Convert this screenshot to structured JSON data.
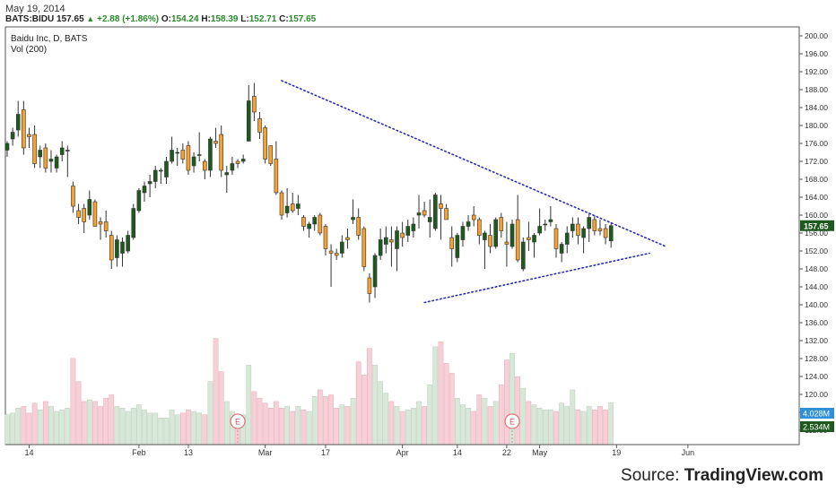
{
  "header": {
    "date": "May 19, 2014",
    "symbol": "BATS:BIDU",
    "last": "157.65",
    "change": "+2.88 (+1.86%)",
    "open_label": "O:",
    "open": "154.24",
    "high_label": "H:",
    "high": "158.39",
    "low_label": "L:",
    "low": "152.71",
    "close_label": "C:",
    "close": "157.65"
  },
  "chart_data": {
    "type": "candlestick",
    "title": "Baidu Inc, D, BATS",
    "volume_label": "Vol (200)",
    "ylim": [
      110,
      202
    ],
    "y_ticks": [
      "112.00",
      "116.00",
      "120.00",
      "124.00",
      "128.00",
      "132.00",
      "136.00",
      "140.00",
      "144.00",
      "148.00",
      "152.00",
      "156.00",
      "160.00",
      "164.00",
      "168.00",
      "172.00",
      "176.00",
      "180.00",
      "184.00",
      "188.00",
      "192.00",
      "196.00",
      "200.00"
    ],
    "x_ticks": [
      {
        "i": 4,
        "label": "14"
      },
      {
        "i": 24,
        "label": "Feb"
      },
      {
        "i": 33,
        "label": "13"
      },
      {
        "i": 47,
        "label": "Mar"
      },
      {
        "i": 58,
        "label": "17"
      },
      {
        "i": 72,
        "label": "Apr"
      },
      {
        "i": 82,
        "label": "14"
      },
      {
        "i": 91,
        "label": "22"
      },
      {
        "i": 97,
        "label": "May"
      },
      {
        "i": 111,
        "label": "19"
      },
      {
        "i": 124,
        "label": "Jun"
      }
    ],
    "price_badge": {
      "value": 157.65,
      "label": "157.65",
      "color": "#1e5a1e"
    },
    "volume_badges": [
      {
        "label": "4.028M",
        "color": "#2f8fd8"
      },
      {
        "label": "2.534M",
        "color": "#1e5a1e"
      }
    ],
    "colors": {
      "up": "#1e5a1e",
      "down": "#f5a030",
      "vol_up": "#d8e8d8",
      "vol_down": "#f6d0d6",
      "trend": "#2b2bb8"
    },
    "earnings_markers": [
      {
        "i": 42,
        "label": "E"
      },
      {
        "i": 92,
        "label": "E"
      }
    ],
    "trendlines": [
      {
        "points": [
          [
            50,
            190.0
          ],
          [
            120,
            153.0
          ]
        ]
      },
      {
        "points": [
          [
            76,
            140.5
          ],
          [
            117,
            151.5
          ]
        ]
      }
    ],
    "candles": [
      {
        "o": 174.5,
        "h": 176.5,
        "l": 173.0,
        "c": 176.0,
        "v": 1.8
      },
      {
        "o": 177.0,
        "h": 179.5,
        "l": 175.5,
        "c": 178.5,
        "v": 1.9
      },
      {
        "o": 179.0,
        "h": 185.5,
        "l": 177.5,
        "c": 182.5,
        "v": 2.2
      },
      {
        "o": 183.5,
        "h": 185.5,
        "l": 173.5,
        "c": 175.0,
        "v": 2.3
      },
      {
        "o": 178.0,
        "h": 179.5,
        "l": 175.0,
        "c": 177.5,
        "v": 1.9
      },
      {
        "o": 178.0,
        "h": 180.0,
        "l": 170.5,
        "c": 171.5,
        "v": 2.5
      },
      {
        "o": 173.0,
        "h": 175.5,
        "l": 170.5,
        "c": 174.5,
        "v": 2.1
      },
      {
        "o": 175.0,
        "h": 176.0,
        "l": 169.5,
        "c": 170.5,
        "v": 2.6
      },
      {
        "o": 172.0,
        "h": 174.5,
        "l": 169.5,
        "c": 172.5,
        "v": 2.3
      },
      {
        "o": 170.5,
        "h": 173.5,
        "l": 169.5,
        "c": 173.0,
        "v": 2.0
      },
      {
        "o": 173.5,
        "h": 176.5,
        "l": 172.0,
        "c": 175.0,
        "v": 2.1
      },
      {
        "o": 174.5,
        "h": 175.5,
        "l": 168.5,
        "c": 174.5,
        "v": 2.2
      },
      {
        "o": 166.5,
        "h": 167.5,
        "l": 160.5,
        "c": 162.0,
        "v": 5.2
      },
      {
        "o": 161.0,
        "h": 162.5,
        "l": 158.0,
        "c": 159.5,
        "v": 3.8
      },
      {
        "o": 161.5,
        "h": 162.5,
        "l": 156.0,
        "c": 158.5,
        "v": 2.6
      },
      {
        "o": 160.0,
        "h": 165.5,
        "l": 159.0,
        "c": 163.5,
        "v": 2.7
      },
      {
        "o": 163.0,
        "h": 163.5,
        "l": 157.5,
        "c": 157.5,
        "v": 2.6
      },
      {
        "o": 158.5,
        "h": 159.5,
        "l": 154.5,
        "c": 158.0,
        "v": 2.3
      },
      {
        "o": 158.5,
        "h": 161.0,
        "l": 155.0,
        "c": 156.5,
        "v": 2.8
      },
      {
        "o": 155.5,
        "h": 156.5,
        "l": 148.0,
        "c": 150.0,
        "v": 3.0
      },
      {
        "o": 150.5,
        "h": 155.5,
        "l": 148.5,
        "c": 154.5,
        "v": 2.3
      },
      {
        "o": 151.5,
        "h": 155.0,
        "l": 148.5,
        "c": 154.0,
        "v": 2.2
      },
      {
        "o": 152.0,
        "h": 156.5,
        "l": 151.5,
        "c": 155.5,
        "v": 2.0
      },
      {
        "o": 155.0,
        "h": 162.5,
        "l": 154.5,
        "c": 161.5,
        "v": 2.2
      },
      {
        "o": 161.0,
        "h": 166.0,
        "l": 160.5,
        "c": 165.5,
        "v": 2.4
      },
      {
        "o": 165.0,
        "h": 167.5,
        "l": 163.0,
        "c": 166.5,
        "v": 2.1
      },
      {
        "o": 167.0,
        "h": 169.0,
        "l": 164.0,
        "c": 167.5,
        "v": 1.9
      },
      {
        "o": 167.5,
        "h": 171.0,
        "l": 166.0,
        "c": 170.0,
        "v": 1.9
      },
      {
        "o": 170.0,
        "h": 170.5,
        "l": 167.0,
        "c": 170.0,
        "v": 1.6
      },
      {
        "o": 168.5,
        "h": 173.0,
        "l": 167.0,
        "c": 172.0,
        "v": 1.6
      },
      {
        "o": 172.0,
        "h": 177.5,
        "l": 171.5,
        "c": 174.5,
        "v": 2.1
      },
      {
        "o": 174.0,
        "h": 175.0,
        "l": 171.0,
        "c": 174.0,
        "v": 1.8
      },
      {
        "o": 174.5,
        "h": 176.0,
        "l": 171.5,
        "c": 172.5,
        "v": 1.9
      },
      {
        "o": 175.5,
        "h": 176.5,
        "l": 169.0,
        "c": 170.0,
        "v": 2.1
      },
      {
        "o": 171.0,
        "h": 174.0,
        "l": 169.5,
        "c": 173.0,
        "v": 2.0
      },
      {
        "o": 173.5,
        "h": 178.5,
        "l": 172.0,
        "c": 173.5,
        "v": 1.9
      },
      {
        "o": 172.0,
        "h": 172.5,
        "l": 168.0,
        "c": 170.0,
        "v": 1.8
      },
      {
        "o": 170.0,
        "h": 177.5,
        "l": 168.5,
        "c": 177.0,
        "v": 3.8
      },
      {
        "o": 176.5,
        "h": 179.5,
        "l": 175.0,
        "c": 176.0,
        "v": 6.4
      },
      {
        "o": 178.0,
        "h": 180.0,
        "l": 168.5,
        "c": 170.0,
        "v": 4.4
      },
      {
        "o": 169.0,
        "h": 171.0,
        "l": 165.0,
        "c": 169.5,
        "v": 2.6
      },
      {
        "o": 170.0,
        "h": 173.0,
        "l": 169.0,
        "c": 171.5,
        "v": 2.0
      },
      {
        "o": 172.0,
        "h": 172.5,
        "l": 170.5,
        "c": 171.5,
        "v": 1.6
      },
      {
        "o": 172.0,
        "h": 173.5,
        "l": 171.5,
        "c": 172.5,
        "v": 1.8
      },
      {
        "o": 176.5,
        "h": 189.0,
        "l": 176.5,
        "c": 185.5,
        "v": 4.8
      },
      {
        "o": 186.5,
        "h": 189.5,
        "l": 181.0,
        "c": 183.0,
        "v": 3.2
      },
      {
        "o": 181.5,
        "h": 183.0,
        "l": 177.0,
        "c": 178.5,
        "v": 2.8
      },
      {
        "o": 179.5,
        "h": 180.0,
        "l": 171.5,
        "c": 172.5,
        "v": 2.5
      },
      {
        "o": 175.5,
        "h": 175.5,
        "l": 171.0,
        "c": 171.5,
        "v": 2.2
      },
      {
        "o": 172.5,
        "h": 176.5,
        "l": 164.5,
        "c": 165.0,
        "v": 2.6
      },
      {
        "o": 165.0,
        "h": 165.5,
        "l": 159.0,
        "c": 160.0,
        "v": 2.2
      },
      {
        "o": 160.5,
        "h": 166.0,
        "l": 159.5,
        "c": 162.0,
        "v": 2.3
      },
      {
        "o": 162.5,
        "h": 165.0,
        "l": 160.5,
        "c": 161.0,
        "v": 2.0
      },
      {
        "o": 161.5,
        "h": 164.5,
        "l": 160.0,
        "c": 162.5,
        "v": 2.3
      },
      {
        "o": 159.5,
        "h": 160.0,
        "l": 156.5,
        "c": 157.5,
        "v": 2.1
      },
      {
        "o": 157.0,
        "h": 158.5,
        "l": 155.0,
        "c": 158.0,
        "v": 2.0
      },
      {
        "o": 158.0,
        "h": 160.0,
        "l": 156.5,
        "c": 159.5,
        "v": 2.9
      },
      {
        "o": 160.0,
        "h": 160.5,
        "l": 155.5,
        "c": 156.0,
        "v": 3.3
      },
      {
        "o": 157.5,
        "h": 158.0,
        "l": 151.0,
        "c": 152.5,
        "v": 2.9
      },
      {
        "o": 152.0,
        "h": 153.5,
        "l": 144.0,
        "c": 151.5,
        "v": 3.0
      },
      {
        "o": 151.5,
        "h": 152.5,
        "l": 150.0,
        "c": 151.0,
        "v": 2.2
      },
      {
        "o": 151.5,
        "h": 155.5,
        "l": 150.5,
        "c": 154.0,
        "v": 2.4
      },
      {
        "o": 155.0,
        "h": 157.0,
        "l": 152.5,
        "c": 154.5,
        "v": 2.3
      },
      {
        "o": 159.0,
        "h": 163.5,
        "l": 158.0,
        "c": 159.5,
        "v": 2.8
      },
      {
        "o": 159.5,
        "h": 161.5,
        "l": 154.5,
        "c": 155.5,
        "v": 5.0
      },
      {
        "o": 157.0,
        "h": 157.5,
        "l": 147.5,
        "c": 148.5,
        "v": 4.2
      },
      {
        "o": 146.0,
        "h": 147.0,
        "l": 140.5,
        "c": 142.5,
        "v": 5.8
      },
      {
        "o": 144.0,
        "h": 151.5,
        "l": 141.5,
        "c": 151.0,
        "v": 4.8
      },
      {
        "o": 151.0,
        "h": 157.0,
        "l": 150.0,
        "c": 154.5,
        "v": 3.8
      },
      {
        "o": 153.5,
        "h": 157.5,
        "l": 151.5,
        "c": 155.0,
        "v": 3.1
      },
      {
        "o": 154.5,
        "h": 157.5,
        "l": 148.5,
        "c": 154.0,
        "v": 2.6
      },
      {
        "o": 152.5,
        "h": 157.5,
        "l": 147.5,
        "c": 156.5,
        "v": 2.3
      },
      {
        "o": 156.0,
        "h": 158.5,
        "l": 153.0,
        "c": 155.0,
        "v": 2.0
      },
      {
        "o": 155.5,
        "h": 159.0,
        "l": 154.0,
        "c": 157.5,
        "v": 2.1
      },
      {
        "o": 156.5,
        "h": 159.5,
        "l": 155.0,
        "c": 158.0,
        "v": 2.2
      },
      {
        "o": 160.0,
        "h": 164.5,
        "l": 157.0,
        "c": 160.5,
        "v": 2.6
      },
      {
        "o": 161.0,
        "h": 163.0,
        "l": 159.5,
        "c": 160.0,
        "v": 2.3
      },
      {
        "o": 158.5,
        "h": 163.5,
        "l": 155.0,
        "c": 159.5,
        "v": 3.6
      },
      {
        "o": 157.0,
        "h": 165.0,
        "l": 156.5,
        "c": 164.5,
        "v": 5.9
      },
      {
        "o": 162.5,
        "h": 164.5,
        "l": 154.5,
        "c": 161.5,
        "v": 6.2
      },
      {
        "o": 161.5,
        "h": 162.5,
        "l": 159.0,
        "c": 159.0,
        "v": 4.9
      },
      {
        "o": 155.0,
        "h": 157.5,
        "l": 148.5,
        "c": 152.5,
        "v": 4.3
      },
      {
        "o": 150.5,
        "h": 156.0,
        "l": 149.5,
        "c": 155.5,
        "v": 2.8
      },
      {
        "o": 154.5,
        "h": 158.5,
        "l": 153.0,
        "c": 157.5,
        "v": 2.4
      },
      {
        "o": 157.5,
        "h": 160.0,
        "l": 156.5,
        "c": 158.5,
        "v": 2.2
      },
      {
        "o": 160.0,
        "h": 162.0,
        "l": 157.5,
        "c": 159.0,
        "v": 2.0
      },
      {
        "o": 159.0,
        "h": 159.5,
        "l": 153.5,
        "c": 155.5,
        "v": 3.0
      },
      {
        "o": 154.5,
        "h": 156.5,
        "l": 148.0,
        "c": 156.0,
        "v": 2.8
      },
      {
        "o": 155.5,
        "h": 158.0,
        "l": 151.5,
        "c": 153.0,
        "v": 2.3
      },
      {
        "o": 153.0,
        "h": 159.5,
        "l": 152.5,
        "c": 159.0,
        "v": 2.6
      },
      {
        "o": 159.5,
        "h": 160.5,
        "l": 155.0,
        "c": 156.5,
        "v": 3.6
      },
      {
        "o": 154.0,
        "h": 158.5,
        "l": 148.5,
        "c": 153.5,
        "v": 5.1
      },
      {
        "o": 153.0,
        "h": 159.0,
        "l": 152.5,
        "c": 158.0,
        "v": 5.5
      },
      {
        "o": 159.0,
        "h": 164.5,
        "l": 149.5,
        "c": 150.0,
        "v": 4.1
      },
      {
        "o": 148.0,
        "h": 155.0,
        "l": 147.5,
        "c": 154.0,
        "v": 3.4
      },
      {
        "o": 155.0,
        "h": 158.5,
        "l": 152.0,
        "c": 154.5,
        "v": 2.6
      },
      {
        "o": 154.0,
        "h": 156.0,
        "l": 150.5,
        "c": 155.5,
        "v": 2.4
      },
      {
        "o": 156.0,
        "h": 161.5,
        "l": 155.5,
        "c": 157.5,
        "v": 2.2
      },
      {
        "o": 158.0,
        "h": 159.0,
        "l": 156.5,
        "c": 158.0,
        "v": 2.1
      },
      {
        "o": 158.5,
        "h": 162.0,
        "l": 157.5,
        "c": 159.0,
        "v": 2.1
      },
      {
        "o": 157.0,
        "h": 158.0,
        "l": 150.5,
        "c": 152.5,
        "v": 2.0
      },
      {
        "o": 151.5,
        "h": 154.0,
        "l": 149.5,
        "c": 153.5,
        "v": 2.5
      },
      {
        "o": 153.5,
        "h": 157.5,
        "l": 151.5,
        "c": 156.0,
        "v": 2.3
      },
      {
        "o": 156.5,
        "h": 159.5,
        "l": 155.0,
        "c": 158.0,
        "v": 3.3
      },
      {
        "o": 158.0,
        "h": 159.5,
        "l": 153.5,
        "c": 155.5,
        "v": 2.1
      },
      {
        "o": 155.0,
        "h": 157.5,
        "l": 151.5,
        "c": 157.0,
        "v": 2.0
      },
      {
        "o": 157.0,
        "h": 160.5,
        "l": 154.0,
        "c": 159.5,
        "v": 2.3
      },
      {
        "o": 159.0,
        "h": 160.0,
        "l": 155.5,
        "c": 156.5,
        "v": 2.1
      },
      {
        "o": 157.0,
        "h": 159.0,
        "l": 155.5,
        "c": 156.5,
        "v": 2.3
      },
      {
        "o": 157.0,
        "h": 158.0,
        "l": 153.5,
        "c": 155.0,
        "v": 2.1
      },
      {
        "o": 154.24,
        "h": 158.39,
        "l": 152.71,
        "c": 157.65,
        "v": 2.534
      }
    ]
  },
  "footer": {
    "source_prefix": "Source: ",
    "source_brand": "TradingView.com"
  }
}
